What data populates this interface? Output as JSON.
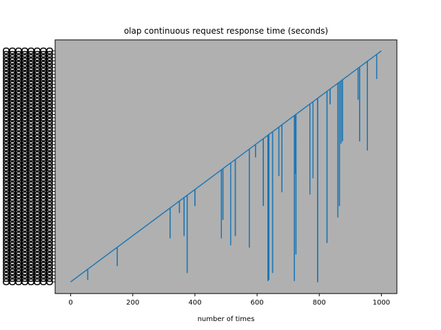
{
  "chart_data": {
    "type": "line",
    "title": "olap continuous request response time (seconds)",
    "xlabel": "number of times",
    "ylabel": "",
    "xlim": [
      -50,
      1050
    ],
    "ylim": [
      0,
      1000
    ],
    "x_ticks": [
      0,
      200,
      400,
      600,
      800,
      1000
    ],
    "x_tick_labels": [
      "0",
      "200",
      "400",
      "600",
      "800",
      "1000"
    ],
    "grid": false,
    "legend": "none",
    "background_color": "#b0b0b0",
    "series": [
      {
        "color": "#1f77b4",
        "baseline": [
          [
            0,
            0
          ],
          [
            1000,
            1000
          ]
        ],
        "spikes": [
          [
            55,
            10
          ],
          [
            150,
            70
          ],
          [
            320,
            190
          ],
          [
            350,
            300
          ],
          [
            365,
            200
          ],
          [
            375,
            40
          ],
          [
            400,
            330
          ],
          [
            485,
            190
          ],
          [
            490,
            270
          ],
          [
            515,
            160
          ],
          [
            530,
            200
          ],
          [
            575,
            150
          ],
          [
            595,
            540
          ],
          [
            620,
            330
          ],
          [
            635,
            5
          ],
          [
            638,
            10
          ],
          [
            650,
            40
          ],
          [
            670,
            460
          ],
          [
            680,
            390
          ],
          [
            720,
            5
          ],
          [
            722,
            470
          ],
          [
            725,
            120
          ],
          [
            770,
            380
          ],
          [
            780,
            450
          ],
          [
            795,
            0
          ],
          [
            825,
            170
          ],
          [
            835,
            770
          ],
          [
            860,
            280
          ],
          [
            865,
            330
          ],
          [
            870,
            600
          ],
          [
            875,
            610
          ],
          [
            925,
            790
          ],
          [
            930,
            610
          ],
          [
            955,
            570
          ],
          [
            985,
            880
          ]
        ]
      }
    ]
  }
}
